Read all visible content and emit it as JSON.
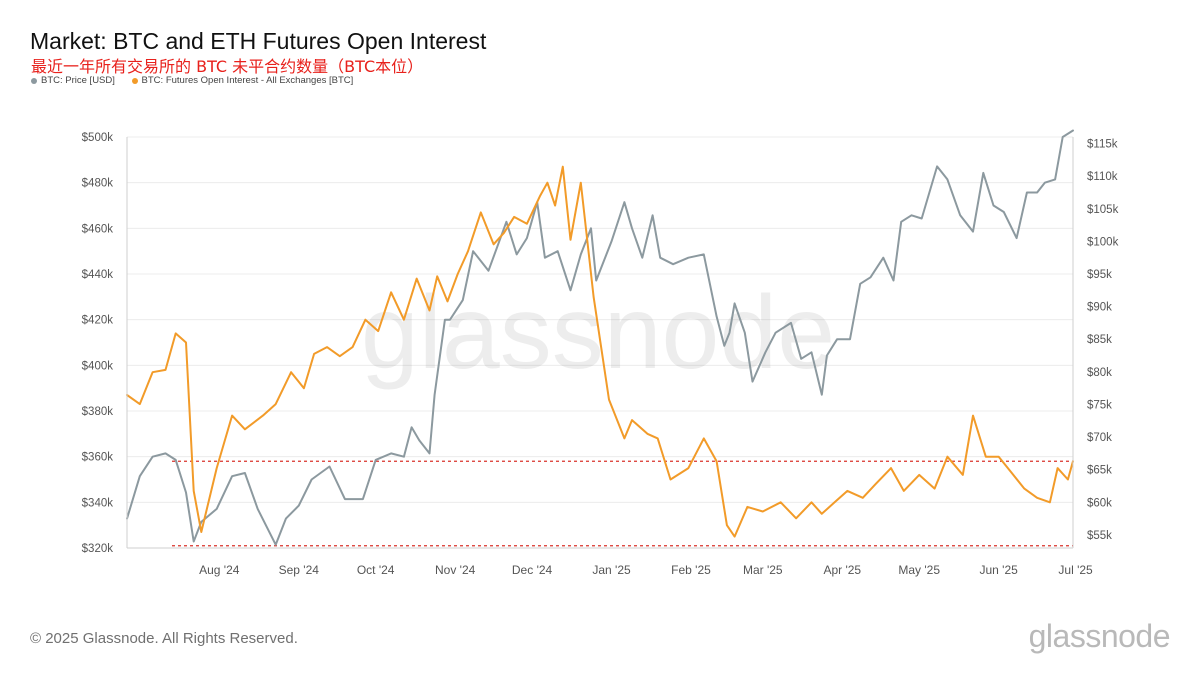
{
  "title": "Market: BTC and ETH Futures Open Interest",
  "subtitle": "最近一年所有交易所的 BTC 未平合约数量（BTC本位）",
  "footer": {
    "copyright": "© 2025 Glassnode. All Rights Reserved.",
    "brand": "glassnode"
  },
  "watermark": "glassnode",
  "colors": {
    "price": "#8c999f",
    "oi": "#f29b29",
    "reference_line": "#d9332b",
    "grid": "#ececec"
  },
  "chart_data": {
    "type": "line",
    "x_axis": {
      "ticks": [
        "Aug '24",
        "Sep '24",
        "Oct '24",
        "Nov '24",
        "Dec '24",
        "Jan '25",
        "Feb '25",
        "Mar '25",
        "Apr '25",
        "May '25",
        "Jun '25",
        "Jul '25"
      ],
      "range": [
        "2024-07-10",
        "2025-07-14"
      ]
    },
    "y_left": {
      "ticks": [
        "$320k",
        "$340k",
        "$360k",
        "$380k",
        "$400k",
        "$420k",
        "$440k",
        "$460k",
        "$480k",
        "$500k"
      ],
      "range": [
        320000,
        500000
      ]
    },
    "y_right": {
      "ticks": [
        "$55k",
        "$60k",
        "$65k",
        "$70k",
        "$75k",
        "$80k",
        "$85k",
        "$90k",
        "$95k",
        "$100k",
        "$105k",
        "$110k",
        "$115k"
      ],
      "range": [
        53000,
        116000
      ]
    },
    "legend": {
      "position": "top-left"
    },
    "grid": true,
    "series": [
      {
        "name": "BTC: Price [USD]",
        "axis": "right",
        "color": "#8c999f",
        "x": [
          "2024-07-10",
          "2024-07-15",
          "2024-07-20",
          "2024-07-25",
          "2024-07-29",
          "2024-08-02",
          "2024-08-05",
          "2024-08-08",
          "2024-08-14",
          "2024-08-20",
          "2024-08-25",
          "2024-08-30",
          "2024-09-06",
          "2024-09-10",
          "2024-09-15",
          "2024-09-20",
          "2024-09-27",
          "2024-10-03",
          "2024-10-10",
          "2024-10-15",
          "2024-10-21",
          "2024-10-26",
          "2024-10-29",
          "2024-11-01",
          "2024-11-05",
          "2024-11-07",
          "2024-11-11",
          "2024-11-13",
          "2024-11-18",
          "2024-11-22",
          "2024-11-28",
          "2024-12-05",
          "2024-12-09",
          "2024-12-13",
          "2024-12-17",
          "2024-12-20",
          "2024-12-25",
          "2024-12-30",
          "2025-01-03",
          "2025-01-07",
          "2025-01-09",
          "2025-01-15",
          "2025-01-20",
          "2025-01-23",
          "2025-01-27",
          "2025-01-31",
          "2025-02-03",
          "2025-02-08",
          "2025-02-14",
          "2025-02-20",
          "2025-02-25",
          "2025-02-28",
          "2025-03-02",
          "2025-03-04",
          "2025-03-08",
          "2025-03-11",
          "2025-03-16",
          "2025-03-20",
          "2025-03-26",
          "2025-03-30",
          "2025-04-03",
          "2025-04-07",
          "2025-04-09",
          "2025-04-13",
          "2025-04-18",
          "2025-04-22",
          "2025-04-26",
          "2025-05-01",
          "2025-05-05",
          "2025-05-08",
          "2025-05-12",
          "2025-05-16",
          "2025-05-22",
          "2025-05-26",
          "2025-05-31",
          "2025-06-05",
          "2025-06-09",
          "2025-06-13",
          "2025-06-17",
          "2025-06-22",
          "2025-06-26",
          "2025-06-30",
          "2025-07-03",
          "2025-07-07",
          "2025-07-10",
          "2025-07-14"
        ],
        "y": [
          57500,
          64000,
          67000,
          67500,
          66500,
          61500,
          54000,
          57000,
          59000,
          64000,
          64500,
          59000,
          53500,
          57500,
          59500,
          63500,
          65500,
          60500,
          60500,
          66500,
          67500,
          67000,
          71500,
          69500,
          67500,
          76500,
          88000,
          88000,
          91000,
          98500,
          95500,
          103000,
          98000,
          100500,
          106000,
          97500,
          98500,
          92500,
          98000,
          102000,
          94000,
          100000,
          106000,
          102000,
          97500,
          104000,
          97500,
          96500,
          97500,
          98000,
          88500,
          84000,
          86000,
          90500,
          86000,
          78500,
          83000,
          86000,
          87500,
          82000,
          83000,
          76500,
          82500,
          85000,
          85000,
          93500,
          94500,
          97500,
          94000,
          103000,
          104000,
          103500,
          111500,
          109500,
          104000,
          101500,
          110500,
          105500,
          104500,
          100500,
          107500,
          107500,
          109000,
          109500,
          116000,
          117000
        ]
      },
      {
        "name": "BTC: Futures Open Interest - All Exchanges [BTC]",
        "axis": "left",
        "color": "#f29b29",
        "x": [
          "2024-07-10",
          "2024-07-15",
          "2024-07-20",
          "2024-07-25",
          "2024-07-29",
          "2024-08-02",
          "2024-08-05",
          "2024-08-08",
          "2024-08-14",
          "2024-08-20",
          "2024-08-25",
          "2024-09-01",
          "2024-09-06",
          "2024-09-12",
          "2024-09-17",
          "2024-09-21",
          "2024-09-26",
          "2024-10-01",
          "2024-10-06",
          "2024-10-11",
          "2024-10-16",
          "2024-10-21",
          "2024-10-26",
          "2024-10-31",
          "2024-11-05",
          "2024-11-08",
          "2024-11-12",
          "2024-11-16",
          "2024-11-20",
          "2024-11-25",
          "2024-11-30",
          "2024-12-04",
          "2024-12-08",
          "2024-12-13",
          "2024-12-18",
          "2024-12-21",
          "2024-12-24",
          "2024-12-27",
          "2024-12-30",
          "2025-01-03",
          "2025-01-08",
          "2025-01-14",
          "2025-01-20",
          "2025-01-23",
          "2025-01-29",
          "2025-02-02",
          "2025-02-07",
          "2025-02-14",
          "2025-02-20",
          "2025-02-25",
          "2025-03-01",
          "2025-03-04",
          "2025-03-09",
          "2025-03-15",
          "2025-03-22",
          "2025-03-28",
          "2025-04-03",
          "2025-04-07",
          "2025-04-12",
          "2025-04-17",
          "2025-04-23",
          "2025-04-28",
          "2025-05-04",
          "2025-05-09",
          "2025-05-15",
          "2025-05-21",
          "2025-05-26",
          "2025-06-01",
          "2025-06-05",
          "2025-06-10",
          "2025-06-15",
          "2025-06-20",
          "2025-06-25",
          "2025-06-30",
          "2025-07-05",
          "2025-07-08",
          "2025-07-12",
          "2025-07-14"
        ],
        "y": [
          387000,
          383000,
          397000,
          398000,
          414000,
          410000,
          345000,
          327000,
          355000,
          378000,
          372000,
          378000,
          383000,
          397000,
          390000,
          405000,
          408000,
          404000,
          408000,
          420000,
          415000,
          432000,
          420000,
          438000,
          424000,
          439000,
          428000,
          440000,
          450000,
          467000,
          453000,
          458000,
          465000,
          462000,
          474000,
          480000,
          470000,
          487000,
          455000,
          480000,
          430000,
          385000,
          368000,
          376000,
          370000,
          368000,
          350000,
          355000,
          368000,
          358000,
          330000,
          325000,
          338000,
          336000,
          340000,
          333000,
          340000,
          335000,
          340000,
          345000,
          342000,
          348000,
          355000,
          345000,
          352000,
          346000,
          360000,
          352000,
          378000,
          360000,
          360000,
          353000,
          346000,
          342000,
          340000,
          355000,
          350000,
          358000
        ]
      }
    ],
    "reference_lines": {
      "axis": "left",
      "values": [
        358000,
        321000
      ]
    }
  }
}
